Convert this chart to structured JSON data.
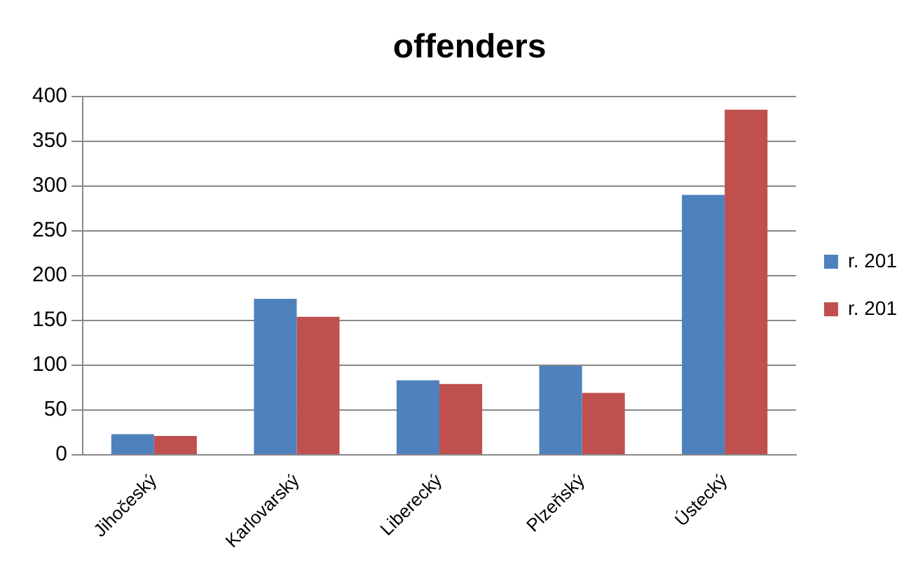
{
  "chart_data": {
    "type": "bar",
    "title": "offenders",
    "categories": [
      "Jihočeský",
      "Karlovarský",
      "Liberecký",
      "Plzeňský",
      "Ústecký"
    ],
    "series": [
      {
        "name": "r. 201",
        "color": "#4f81bd",
        "values": [
          23,
          174,
          83,
          99,
          290
        ]
      },
      {
        "name": "r. 201",
        "color": "#c0504d",
        "values": [
          21,
          154,
          79,
          69,
          385
        ]
      }
    ],
    "ylim": [
      0,
      400
    ],
    "yticks": [
      0,
      50,
      100,
      150,
      200,
      250,
      300,
      350,
      400
    ],
    "grid": "y",
    "legend": "right"
  }
}
